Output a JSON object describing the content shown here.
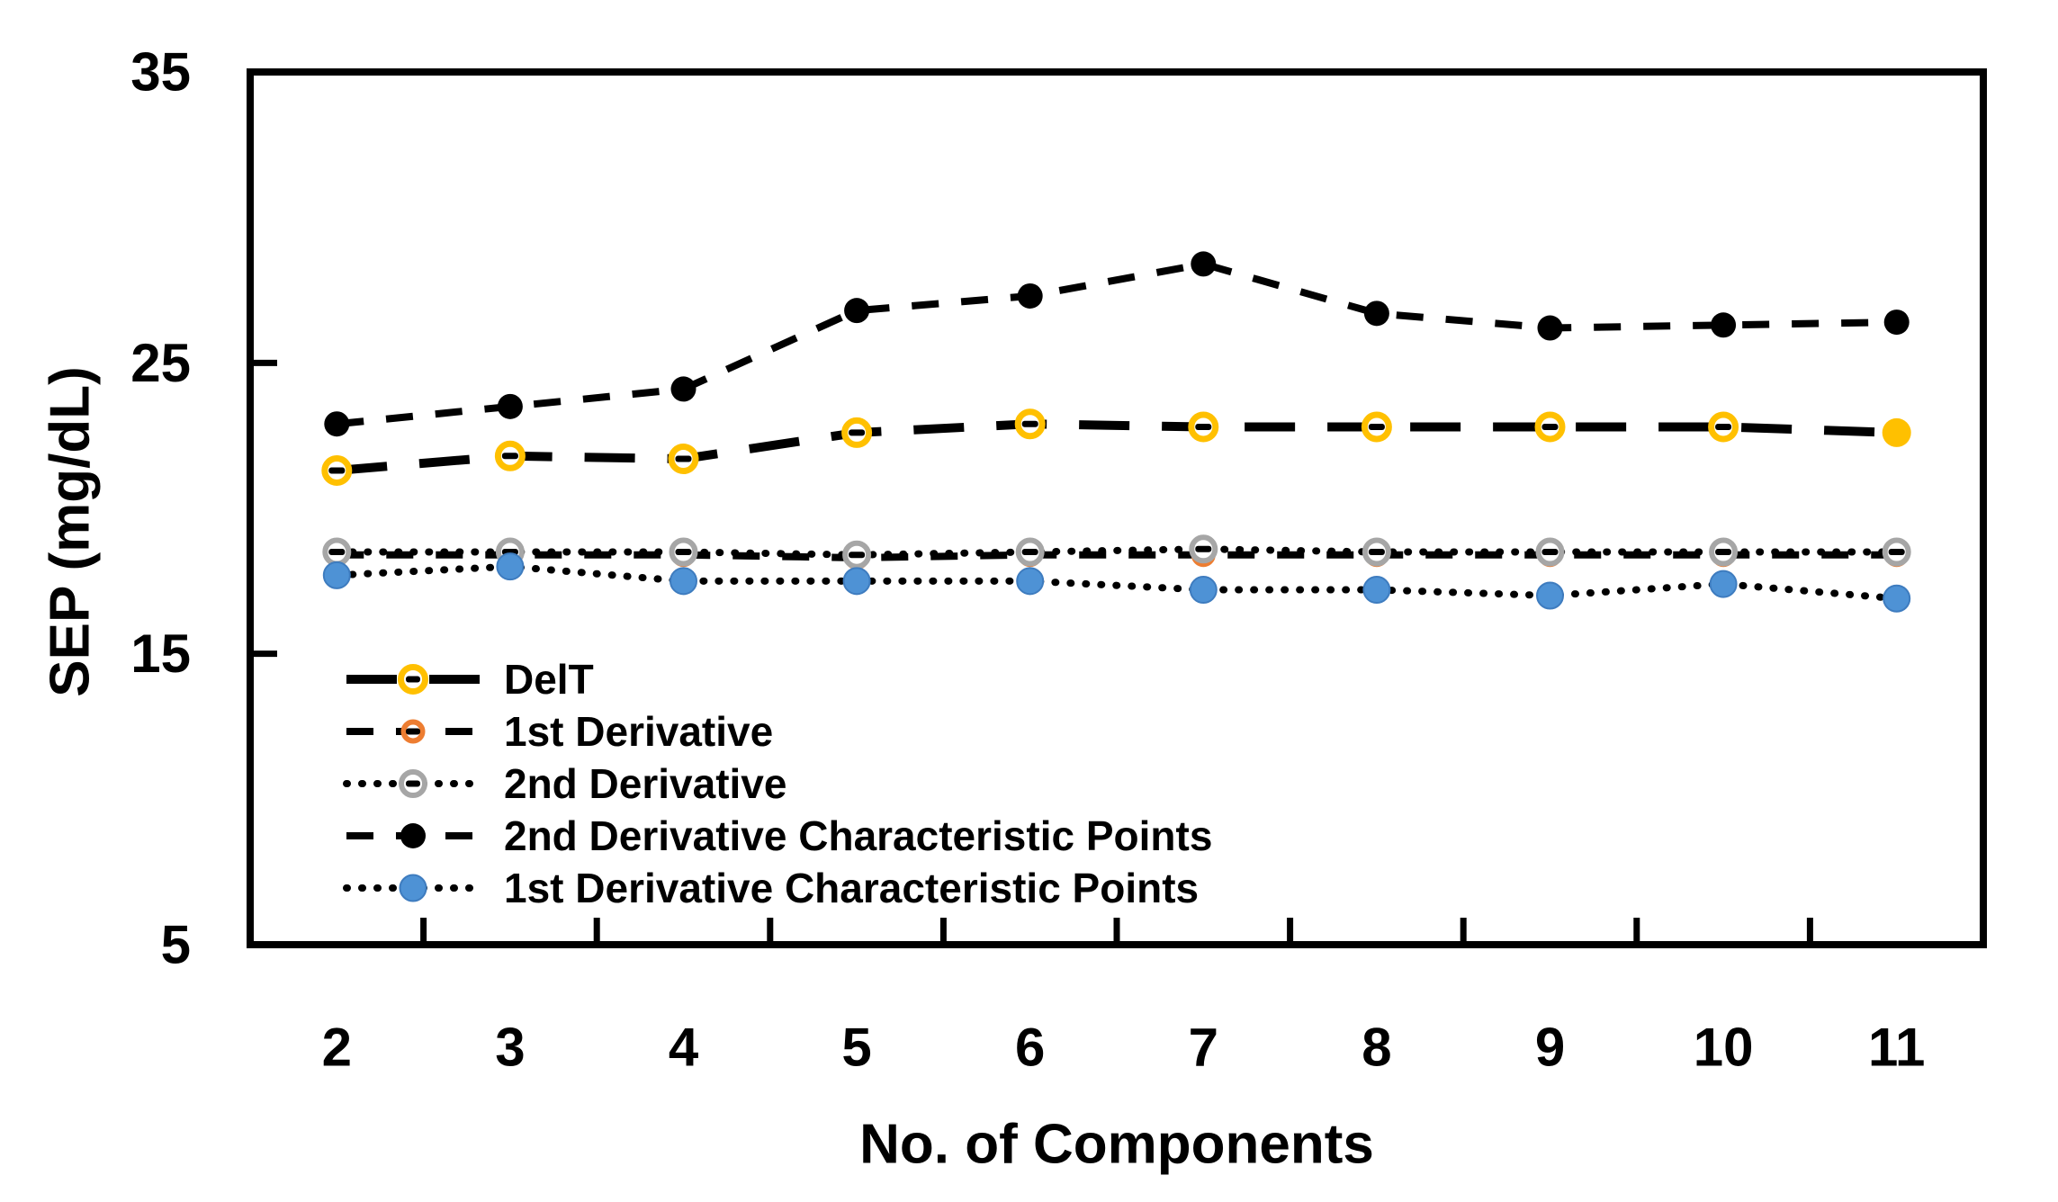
{
  "figure": {
    "background": "#ffffff",
    "frame_color": "#000000"
  },
  "chart_data": {
    "type": "line",
    "title": "",
    "xlabel": "No. of Components",
    "ylabel": "SEP (mg/dL)",
    "x": [
      2,
      3,
      4,
      5,
      6,
      7,
      8,
      9,
      10,
      11
    ],
    "xticklabels": [
      "2",
      "3",
      "4",
      "5",
      "6",
      "7",
      "8",
      "9",
      "10",
      "11"
    ],
    "ylim": [
      5,
      35
    ],
    "yticks": [
      5,
      15,
      25,
      35
    ],
    "grid": false,
    "legend_position": "inside-bottom-left",
    "series": [
      {
        "name": "DelT",
        "values": [
          21.3,
          21.8,
          21.7,
          22.6,
          22.9,
          22.8,
          22.8,
          22.8,
          22.8,
          22.6
        ],
        "marker": "open-circle",
        "marker_color": "#FFC000",
        "line_color": "#000000",
        "line_style": "long-dash",
        "last_marker_filled": true
      },
      {
        "name": "1st Derivative",
        "values": [
          18.4,
          18.4,
          18.4,
          18.3,
          18.4,
          18.4,
          18.4,
          18.4,
          18.4,
          18.4
        ],
        "marker": "open-circle",
        "marker_color": "#ED7D31",
        "line_color": "#000000",
        "line_style": "dash",
        "last_marker_filled": false
      },
      {
        "name": "2nd Derivative",
        "values": [
          18.5,
          18.5,
          18.5,
          18.4,
          18.5,
          18.6,
          18.5,
          18.5,
          18.5,
          18.5
        ],
        "marker": "open-circle",
        "marker_color": "#A6A6A6",
        "line_color": "#000000",
        "line_style": "dot",
        "last_marker_filled": false
      },
      {
        "name": "2nd Derivative Characteristic Points",
        "values": [
          22.9,
          23.5,
          24.1,
          26.8,
          27.3,
          28.4,
          26.7,
          26.2,
          26.3,
          26.4
        ],
        "marker": "filled-circle",
        "marker_color": "#000000",
        "line_color": "#000000",
        "line_style": "dash",
        "last_marker_filled": false
      },
      {
        "name": "1st Derivative Characteristic Points",
        "values": [
          17.7,
          18.0,
          17.5,
          17.5,
          17.5,
          17.2,
          17.2,
          17.0,
          17.4,
          16.9
        ],
        "marker": "filled-circle",
        "marker_color": "#4E92D5",
        "line_color": "#000000",
        "line_style": "dot",
        "last_marker_filled": false
      }
    ]
  }
}
